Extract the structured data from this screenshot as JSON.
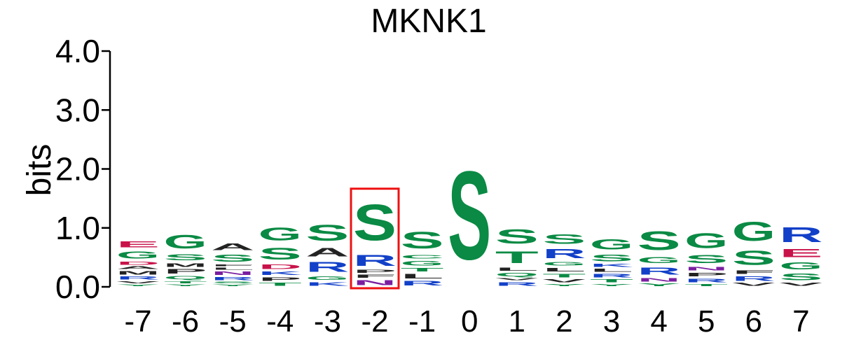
{
  "chart_data": {
    "type": "sequence_logo",
    "title": "MKNK1",
    "ylabel": "bits",
    "ylim": [
      0,
      4
    ],
    "yticks": [
      "0.0",
      "1.0",
      "2.0",
      "3.0",
      "4.0"
    ],
    "highlighted_position": "-2",
    "colors": {
      "S": "#0a8a44",
      "G": "#0a8a44",
      "T": "#0a8a44",
      "C": "#0a8a44",
      "Y": "#0a8a44",
      "Q": "#0a8a44",
      "R": "#1240c8",
      "K": "#1240c8",
      "H": "#1240c8",
      "D": "#c8124a",
      "E": "#c8124a",
      "N": "#7a1ea0",
      "A": "#222222",
      "V": "#222222",
      "L": "#222222",
      "I": "#222222",
      "P": "#222222",
      "F": "#222222",
      "M": "#222222",
      "W": "#222222"
    },
    "positions": [
      {
        "label": "-7",
        "stack": [
          [
            "Y",
            0.05
          ],
          [
            "V",
            0.06
          ],
          [
            "R",
            0.08
          ],
          [
            "M",
            0.1
          ],
          [
            "A",
            0.07
          ],
          [
            "D",
            0.08
          ],
          [
            "G",
            0.2
          ],
          [
            "E",
            0.16
          ]
        ]
      },
      {
        "label": "-6",
        "stack": [
          [
            "Y",
            0.05
          ],
          [
            "T",
            0.06
          ],
          [
            "Q",
            0.09
          ],
          [
            "P",
            0.12
          ],
          [
            "M",
            0.1
          ],
          [
            "S",
            0.16
          ],
          [
            "G",
            0.37
          ]
        ]
      },
      {
        "label": "-5",
        "stack": [
          [
            "Y",
            0.05
          ],
          [
            "S",
            0.05
          ],
          [
            "R",
            0.08
          ],
          [
            "N",
            0.1
          ],
          [
            "L",
            0.06
          ],
          [
            "F",
            0.05
          ],
          [
            "S",
            0.2
          ],
          [
            "A",
            0.18
          ]
        ]
      },
      {
        "label": "-4",
        "stack": [
          [
            "T",
            0.08
          ],
          [
            "P",
            0.1
          ],
          [
            "K",
            0.1
          ],
          [
            "D",
            0.12
          ],
          [
            "S",
            0.32
          ],
          [
            "G",
            0.35
          ]
        ]
      },
      {
        "label": "-3",
        "stack": [
          [
            "K",
            0.1
          ],
          [
            "G",
            0.1
          ],
          [
            "R",
            0.27
          ],
          [
            "A",
            0.23
          ],
          [
            "S",
            0.43
          ]
        ]
      },
      {
        "label": "-2",
        "stack": [
          [
            "N",
            0.14
          ],
          [
            "F",
            0.08
          ],
          [
            "P",
            0.08
          ],
          [
            "R",
            0.3
          ],
          [
            "S",
            0.97
          ]
        ]
      },
      {
        "label": "-1",
        "stack": [
          [
            "R",
            0.12
          ],
          [
            "L",
            0.12
          ],
          [
            "T",
            0.1
          ],
          [
            "G",
            0.12
          ],
          [
            "C",
            0.1
          ],
          [
            "S",
            0.46
          ]
        ]
      },
      {
        "label": "0",
        "stack": [
          [
            "S",
            2.4
          ]
        ]
      },
      {
        "label": "1",
        "stack": [
          [
            "R",
            0.1
          ],
          [
            "V",
            0.06
          ],
          [
            "Q",
            0.1
          ],
          [
            "L",
            0.08
          ],
          [
            "T",
            0.32
          ],
          [
            "S",
            0.38
          ]
        ]
      },
      {
        "label": "2",
        "stack": [
          [
            "Y",
            0.06
          ],
          [
            "V",
            0.08
          ],
          [
            "T",
            0.1
          ],
          [
            "L",
            0.1
          ],
          [
            "G",
            0.1
          ],
          [
            "R",
            0.24
          ],
          [
            "S",
            0.26
          ]
        ]
      },
      {
        "label": "3",
        "stack": [
          [
            "Y",
            0.06
          ],
          [
            "T",
            0.08
          ],
          [
            "R",
            0.1
          ],
          [
            "L",
            0.08
          ],
          [
            "K",
            0.08
          ],
          [
            "S",
            0.18
          ],
          [
            "G",
            0.28
          ]
        ]
      },
      {
        "label": "4",
        "stack": [
          [
            "Y",
            0.07
          ],
          [
            "N",
            0.1
          ],
          [
            "R",
            0.2
          ],
          [
            "G",
            0.16
          ],
          [
            "S",
            0.5
          ]
        ]
      },
      {
        "label": "5",
        "stack": [
          [
            "T",
            0.06
          ],
          [
            "R",
            0.1
          ],
          [
            "P",
            0.1
          ],
          [
            "N",
            0.1
          ],
          [
            "S",
            0.22
          ],
          [
            "G",
            0.4
          ]
        ]
      },
      {
        "label": "6",
        "stack": [
          [
            "V",
            0.08
          ],
          [
            "R",
            0.12
          ],
          [
            "F",
            0.1
          ],
          [
            "S",
            0.38
          ],
          [
            "G",
            0.52
          ]
        ]
      },
      {
        "label": "7",
        "stack": [
          [
            "V",
            0.08
          ],
          [
            "S",
            0.18
          ],
          [
            "G",
            0.2
          ],
          [
            "E",
            0.22
          ],
          [
            "R",
            0.4
          ]
        ]
      }
    ]
  }
}
